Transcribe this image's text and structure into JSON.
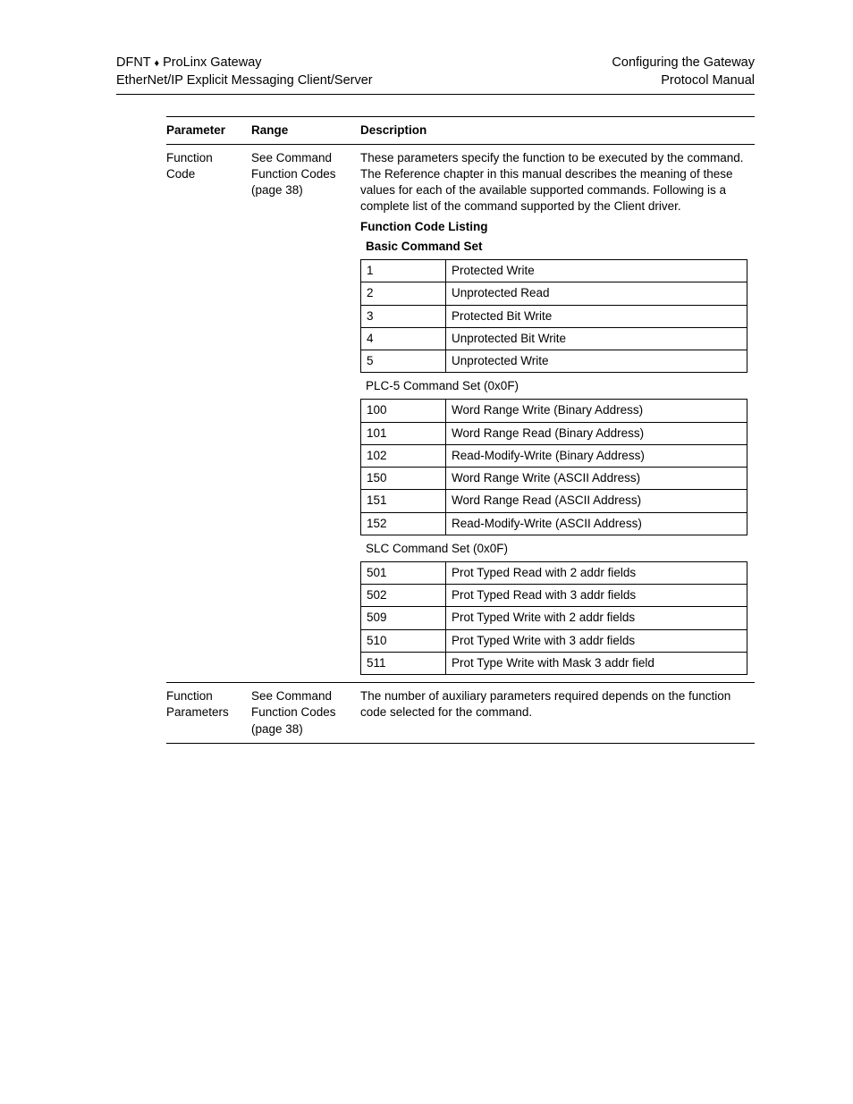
{
  "header": {
    "left_line1_a": "DFNT ",
    "left_line1_b": " ProLinx Gateway",
    "left_line2": "EtherNet/IP Explicit Messaging Client/Server",
    "right_line1": "Configuring the Gateway",
    "right_line2": "Protocol Manual",
    "diamond": "♦"
  },
  "table": {
    "headers": {
      "parameter": "Parameter",
      "range": "Range",
      "description": "Description"
    },
    "rows": [
      {
        "parameter": "Function Code",
        "range": "See Command Function Codes (page 38)",
        "desc_para": "These parameters specify the function to be executed by the command. The Reference chapter in this manual describes the meaning of these values for each of the available supported commands. Following is a complete list of the command supported by the Client driver.",
        "listing_label": "Function Code Listing",
        "sections": [
          {
            "title": "Basic Command Set",
            "title_bold": true,
            "rows": [
              {
                "code": "1",
                "name": "Protected Write"
              },
              {
                "code": "2",
                "name": "Unprotected Read"
              },
              {
                "code": "3",
                "name": "Protected Bit Write"
              },
              {
                "code": "4",
                "name": "Unprotected Bit Write"
              },
              {
                "code": "5",
                "name": "Unprotected Write"
              }
            ]
          },
          {
            "title": "PLC-5 Command Set (0x0F)",
            "title_bold": false,
            "rows": [
              {
                "code": "100",
                "name": "Word Range Write (Binary Address)"
              },
              {
                "code": "101",
                "name": "Word Range Read (Binary Address)"
              },
              {
                "code": "102",
                "name": "Read-Modify-Write (Binary Address)"
              },
              {
                "code": "150",
                "name": "Word Range Write (ASCII Address)"
              },
              {
                "code": "151",
                "name": "Word Range Read (ASCII Address)"
              },
              {
                "code": "152",
                "name": "Read-Modify-Write (ASCII Address)"
              }
            ]
          },
          {
            "title": "SLC Command Set (0x0F)",
            "title_bold": false,
            "rows": [
              {
                "code": "501",
                "name": "Prot Typed Read with 2 addr fields"
              },
              {
                "code": "502",
                "name": "Prot Typed Read with 3 addr fields"
              },
              {
                "code": "509",
                "name": "Prot Typed Write with 2 addr fields"
              },
              {
                "code": "510",
                "name": "Prot Typed Write with 3 addr fields"
              },
              {
                "code": "511",
                "name": "Prot Type Write with Mask 3 addr field"
              }
            ]
          }
        ]
      },
      {
        "parameter": "Function Parameters",
        "range": "See Command Function Codes (page 38)",
        "desc_para": "The number of auxiliary parameters required depends on the function code selected for the command."
      }
    ]
  }
}
